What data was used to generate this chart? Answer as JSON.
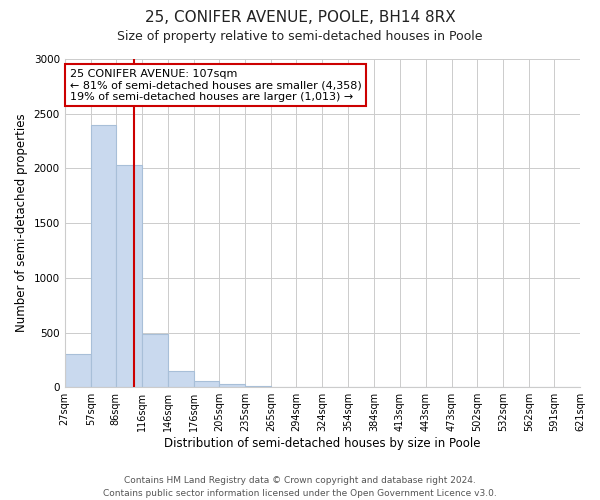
{
  "title": "25, CONIFER AVENUE, POOLE, BH14 8RX",
  "subtitle": "Size of property relative to semi-detached houses in Poole",
  "xlabel": "Distribution of semi-detached houses by size in Poole",
  "ylabel": "Number of semi-detached properties",
  "footer_line1": "Contains HM Land Registry data © Crown copyright and database right 2024.",
  "footer_line2": "Contains public sector information licensed under the Open Government Licence v3.0.",
  "bin_edges": [
    27,
    57,
    86,
    116,
    146,
    176,
    205,
    235,
    265,
    294,
    324,
    354,
    384,
    413,
    443,
    473,
    502,
    532,
    562,
    591,
    621
  ],
  "bar_heights": [
    300,
    2400,
    2030,
    490,
    145,
    55,
    25,
    15,
    0,
    0,
    0,
    0,
    0,
    0,
    0,
    0,
    0,
    0,
    0,
    0
  ],
  "bar_color": "#c9d9ee",
  "bar_edge_color": "#a8bfd8",
  "property_line_x": 107,
  "property_line_color": "#cc0000",
  "annotation_title": "25 CONIFER AVENUE: 107sqm",
  "annotation_line1": "← 81% of semi-detached houses are smaller (4,358)",
  "annotation_line2": "19% of semi-detached houses are larger (1,013) →",
  "annotation_box_facecolor": "#ffffff",
  "annotation_box_edgecolor": "#cc0000",
  "ylim": [
    0,
    3000
  ],
  "xlim": [
    27,
    621
  ],
  "tick_labels": [
    "27sqm",
    "57sqm",
    "86sqm",
    "116sqm",
    "146sqm",
    "176sqm",
    "205sqm",
    "235sqm",
    "265sqm",
    "294sqm",
    "324sqm",
    "354sqm",
    "384sqm",
    "413sqm",
    "443sqm",
    "473sqm",
    "502sqm",
    "532sqm",
    "562sqm",
    "591sqm",
    "621sqm"
  ],
  "grid_color": "#cccccc",
  "background_color": "#ffffff",
  "title_fontsize": 11,
  "subtitle_fontsize": 9,
  "axis_label_fontsize": 8.5,
  "tick_fontsize": 7,
  "footer_fontsize": 6.5,
  "annotation_fontsize": 8,
  "annotation_title_fontsize": 8.5
}
